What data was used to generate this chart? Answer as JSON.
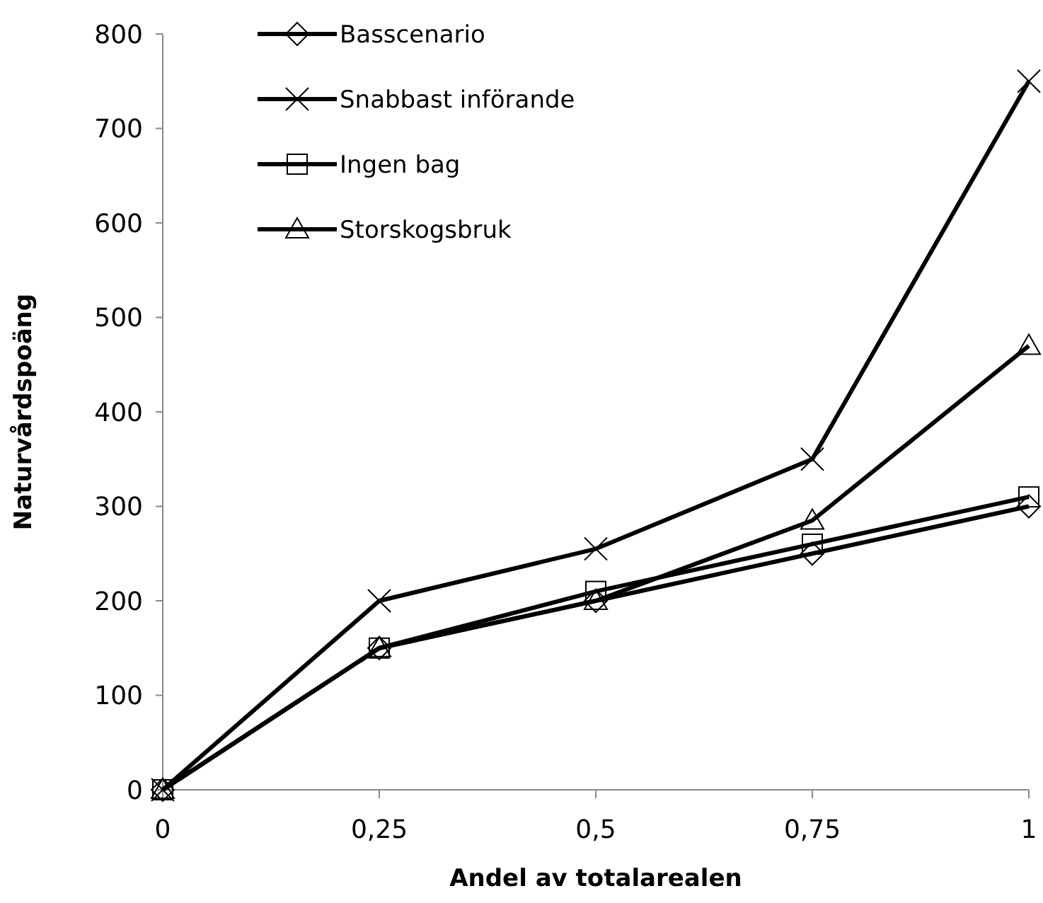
{
  "chart_data": {
    "type": "line",
    "xlabel": "Andel av totalarealen",
    "ylabel": "Naturvårdspoäng",
    "x": [
      0,
      0.25,
      0.5,
      0.75,
      1
    ],
    "xlim": [
      0,
      1
    ],
    "xticks": [
      0,
      {
        "value": 0.25,
        "label": "0,25"
      },
      {
        "value": 0.5,
        "label": "0,5"
      },
      {
        "value": 0.75,
        "label": "0,75"
      },
      1
    ],
    "ylim": [
      0,
      800
    ],
    "yticks": [
      0,
      100,
      200,
      300,
      400,
      500,
      600,
      700,
      800
    ],
    "grid": false,
    "legend": "top left",
    "line_style": "solid",
    "series": [
      {
        "name": "Basscenario",
        "color": "#000000",
        "marker": "diamond",
        "values": [
          0,
          150,
          200,
          250,
          300
        ]
      },
      {
        "name": "Snabbast införande",
        "color": "#000000",
        "marker": "cross",
        "values": [
          0,
          200,
          255,
          350,
          750
        ]
      },
      {
        "name": "Ingen bag",
        "color": "#000000",
        "marker": "square",
        "values": [
          0,
          150,
          210,
          260,
          310
        ]
      },
      {
        "name": "Storskogsbruk",
        "color": "#000000",
        "marker": "triangle",
        "values": [
          0,
          150,
          200,
          285,
          470
        ]
      }
    ]
  }
}
